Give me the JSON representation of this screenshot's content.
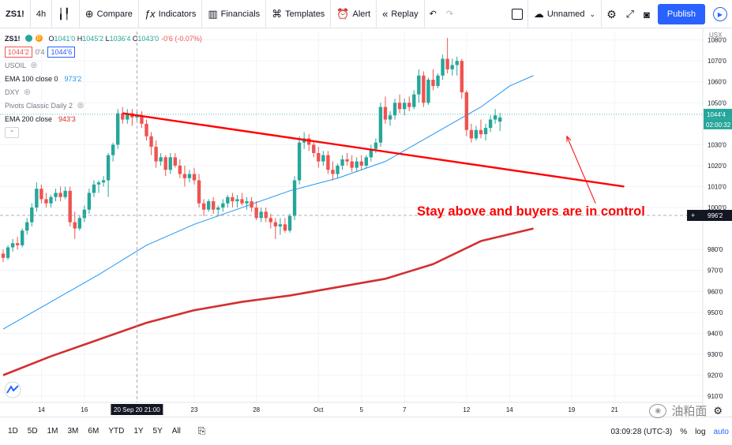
{
  "toolbar": {
    "symbol": "ZS1!",
    "interval": "4h",
    "compare_label": "Compare",
    "indicators_label": "Indicators",
    "financials_label": "Financials",
    "templates_label": "Templates",
    "alert_label": "Alert",
    "replay_label": "Replay",
    "layout_name": "Unnamed",
    "publish_label": "Publish"
  },
  "legend": {
    "symbol": "ZS1!",
    "open_label": "O",
    "open": "1041'0",
    "high_label": "H",
    "high": "1045'2",
    "low_label": "L",
    "low": "1036'4",
    "close_label": "C",
    "close": "1043'0",
    "change": "-0'6 (-0.07%)",
    "bid": "1044'2",
    "spread": "0'4",
    "ask": "1044'6",
    "indicators": [
      {
        "name": "USOIL",
        "value": ""
      },
      {
        "name": "EMA 100 close 0",
        "value": "973'2"
      },
      {
        "name": "DXY",
        "value": ""
      },
      {
        "name": "Pivots Classic Daily 2",
        "value": ""
      },
      {
        "name": "EMA 200 close",
        "value": "943'3"
      }
    ]
  },
  "price_axis": {
    "currency": "USX",
    "last_price": "1044'4",
    "countdown": "02:00:32",
    "crosshair_price": "996'2"
  },
  "time_axis": {
    "crosshair_time": "20 Sep 20   21:00"
  },
  "annotation": {
    "text": "Stay above and buyers are in control"
  },
  "bottombar": {
    "timeframes": [
      "1D",
      "5D",
      "1M",
      "3M",
      "6M",
      "YTD",
      "1Y",
      "5Y",
      "All"
    ],
    "clock": "03:09:28 (UTC-3)",
    "percent_label": "%",
    "log_label": "log",
    "auto_label": "auto"
  },
  "watermark": {
    "text": "油粕面"
  },
  "colors": {
    "up": "#26a69a",
    "down": "#ef5350",
    "ema100": "#2196f3",
    "ema200": "#d32f2f",
    "trendline": "#ff0000",
    "accent": "#2962ff"
  },
  "chart_data": {
    "type": "candlestick",
    "symbol": "ZS1!",
    "interval": "4h",
    "yscale": "linear",
    "y_unit": "cents per bushel",
    "ylim": [
      907,
      1084
    ],
    "y_ticks": [
      {
        "v": 1080,
        "label": "1080'0"
      },
      {
        "v": 1070,
        "label": "1070'0"
      },
      {
        "v": 1060,
        "label": "1060'0"
      },
      {
        "v": 1050,
        "label": "1050'0"
      },
      {
        "v": 1030,
        "label": "1030'0"
      },
      {
        "v": 1020,
        "label": "1020'0"
      },
      {
        "v": 1010,
        "label": "1010'0"
      },
      {
        "v": 1000,
        "label": "1000'0"
      },
      {
        "v": 980,
        "label": "980'0"
      },
      {
        "v": 970,
        "label": "970'0"
      },
      {
        "v": 960,
        "label": "960'0"
      },
      {
        "v": 950,
        "label": "950'0"
      },
      {
        "v": 940,
        "label": "940'0"
      },
      {
        "v": 930,
        "label": "930'0"
      },
      {
        "v": 920,
        "label": "920'0"
      },
      {
        "v": 910,
        "label": "910'0"
      }
    ],
    "x_ticks": [
      {
        "i": 8,
        "label": "14"
      },
      {
        "i": 17,
        "label": "16"
      },
      {
        "i": 40,
        "label": "23"
      },
      {
        "i": 53,
        "label": "28"
      },
      {
        "i": 66,
        "label": "Oct"
      },
      {
        "i": 75,
        "label": "5"
      },
      {
        "i": 84,
        "label": "7"
      },
      {
        "i": 97,
        "label": "12"
      },
      {
        "i": 106,
        "label": "14"
      },
      {
        "i": 119,
        "label": "19"
      },
      {
        "i": 128,
        "label": "21"
      }
    ],
    "grid": true,
    "candles": [
      [
        978,
        980,
        974,
        976
      ],
      [
        976,
        982,
        975,
        981
      ],
      [
        981,
        985,
        979,
        983
      ],
      [
        983,
        986,
        980,
        982
      ],
      [
        982,
        990,
        981,
        989
      ],
      [
        989,
        995,
        987,
        993
      ],
      [
        993,
        1002,
        991,
        1000
      ],
      [
        1000,
        1012,
        998,
        1009
      ],
      [
        1009,
        1011,
        1002,
        1004
      ],
      [
        1004,
        1007,
        1000,
        1002
      ],
      [
        1002,
        1006,
        1000,
        1005
      ],
      [
        1005,
        1009,
        1003,
        1007
      ],
      [
        1007,
        1010,
        1003,
        1005
      ],
      [
        1005,
        1010,
        1004,
        1008
      ],
      [
        1008,
        1010,
        991,
        993
      ],
      [
        993,
        998,
        985,
        990
      ],
      [
        990,
        996,
        989,
        995
      ],
      [
        995,
        1001,
        993,
        999
      ],
      [
        999,
        1009,
        997,
        1007
      ],
      [
        1007,
        1013,
        1005,
        1011
      ],
      [
        1011,
        1013,
        1007,
        1012
      ],
      [
        1012,
        1015,
        1010,
        1013
      ],
      [
        1013,
        1026,
        1005,
        1025
      ],
      [
        1025,
        1031,
        1022,
        1030
      ],
      [
        1030,
        1047,
        1028,
        1045
      ],
      [
        1045,
        1048,
        1040,
        1042
      ],
      [
        1042,
        1047,
        1040,
        1045
      ],
      [
        1045,
        1047,
        1039,
        1043
      ],
      [
        1043,
        1046,
        1041,
        1044
      ],
      [
        1044,
        1046,
        1038,
        1040
      ],
      [
        1040,
        1042,
        1032,
        1034
      ],
      [
        1034,
        1036,
        1025,
        1029
      ],
      [
        1029,
        1032,
        1019,
        1022
      ],
      [
        1022,
        1026,
        1020,
        1024
      ],
      [
        1024,
        1025,
        1015,
        1018
      ],
      [
        1018,
        1026,
        1016,
        1024
      ],
      [
        1024,
        1026,
        1019,
        1020
      ],
      [
        1020,
        1023,
        1014,
        1016
      ],
      [
        1016,
        1020,
        1010,
        1014
      ],
      [
        1014,
        1018,
        1012,
        1016
      ],
      [
        1016,
        1019,
        1011,
        1013
      ],
      [
        1013,
        1016,
        1000,
        1002
      ],
      [
        1002,
        1004,
        996,
        999
      ],
      [
        999,
        1004,
        998,
        1003
      ],
      [
        1003,
        1005,
        997,
        999
      ],
      [
        999,
        1001,
        996,
        1000
      ],
      [
        1000,
        1004,
        998,
        1002
      ],
      [
        1002,
        1006,
        1000,
        1005
      ],
      [
        1005,
        1007,
        1000,
        1003
      ],
      [
        1003,
        1006,
        1000,
        1004
      ],
      [
        1004,
        1007,
        1001,
        1002
      ],
      [
        1002,
        1005,
        999,
        1003
      ],
      [
        1003,
        1005,
        998,
        1000
      ],
      [
        1000,
        1003,
        994,
        995
      ],
      [
        995,
        1000,
        993,
        998
      ],
      [
        998,
        1000,
        993,
        995
      ],
      [
        995,
        997,
        990,
        993
      ],
      [
        993,
        995,
        985,
        991
      ],
      [
        991,
        995,
        987,
        992
      ],
      [
        992,
        995,
        988,
        989
      ],
      [
        989,
        997,
        988,
        996
      ],
      [
        996,
        1015,
        994,
        1013
      ],
      [
        1013,
        1034,
        1011,
        1031
      ],
      [
        1031,
        1036,
        1028,
        1033
      ],
      [
        1033,
        1035,
        1027,
        1030
      ],
      [
        1030,
        1032,
        1024,
        1026
      ],
      [
        1026,
        1029,
        1019,
        1022
      ],
      [
        1022,
        1027,
        1020,
        1025
      ],
      [
        1025,
        1027,
        1016,
        1018
      ],
      [
        1018,
        1022,
        1013,
        1016
      ],
      [
        1016,
        1021,
        1014,
        1020
      ],
      [
        1020,
        1025,
        1018,
        1023
      ],
      [
        1023,
        1026,
        1020,
        1022
      ],
      [
        1022,
        1025,
        1017,
        1019
      ],
      [
        1019,
        1024,
        1017,
        1022
      ],
      [
        1022,
        1025,
        1018,
        1020
      ],
      [
        1020,
        1025,
        1019,
        1024
      ],
      [
        1024,
        1030,
        1022,
        1028
      ],
      [
        1028,
        1033,
        1026,
        1031
      ],
      [
        1031,
        1050,
        1029,
        1048
      ],
      [
        1048,
        1053,
        1040,
        1042
      ],
      [
        1042,
        1046,
        1039,
        1044
      ],
      [
        1044,
        1052,
        1042,
        1050
      ],
      [
        1050,
        1054,
        1045,
        1047
      ],
      [
        1047,
        1052,
        1044,
        1050
      ],
      [
        1050,
        1053,
        1046,
        1048
      ],
      [
        1048,
        1056,
        1047,
        1054
      ],
      [
        1054,
        1066,
        1050,
        1063
      ],
      [
        1063,
        1065,
        1048,
        1050
      ],
      [
        1050,
        1062,
        1049,
        1061
      ],
      [
        1061,
        1066,
        1056,
        1058
      ],
      [
        1058,
        1064,
        1057,
        1063
      ],
      [
        1063,
        1073,
        1061,
        1071
      ],
      [
        1071,
        1081,
        1064,
        1066
      ],
      [
        1066,
        1071,
        1063,
        1068
      ],
      [
        1068,
        1072,
        1063,
        1070
      ],
      [
        1070,
        1071,
        1052,
        1055
      ],
      [
        1055,
        1056,
        1034,
        1037
      ],
      [
        1037,
        1040,
        1031,
        1033
      ],
      [
        1033,
        1039,
        1032,
        1037
      ],
      [
        1037,
        1042,
        1033,
        1035
      ],
      [
        1035,
        1040,
        1032,
        1038
      ],
      [
        1038,
        1044,
        1036,
        1042
      ],
      [
        1042,
        1047,
        1040,
        1044
      ],
      [
        1041,
        1045.25,
        1036.5,
        1043
      ]
    ],
    "series": [
      {
        "name": "EMA 100 close 0",
        "type": "line",
        "values": [
          [
            0,
            942
          ],
          [
            10,
            955
          ],
          [
            20,
            968
          ],
          [
            30,
            982
          ],
          [
            40,
            992
          ],
          [
            50,
            1000
          ],
          [
            60,
            1008
          ],
          [
            70,
            1014
          ],
          [
            80,
            1022
          ],
          [
            90,
            1035
          ],
          [
            100,
            1048
          ],
          [
            106,
            1058
          ],
          [
            111,
            1063
          ]
        ]
      },
      {
        "name": "EMA 200 close",
        "type": "line",
        "values": [
          [
            0,
            920
          ],
          [
            10,
            929
          ],
          [
            20,
            937
          ],
          [
            30,
            945
          ],
          [
            40,
            951
          ],
          [
            50,
            955
          ],
          [
            60,
            958
          ],
          [
            70,
            962
          ],
          [
            80,
            966
          ],
          [
            90,
            973
          ],
          [
            100,
            984
          ],
          [
            111,
            990
          ]
        ]
      }
    ],
    "trendline": {
      "from": [
        25,
        1045
      ],
      "to": [
        130,
        1010
      ]
    },
    "annotation": {
      "text": "Stay above and buyers are in control",
      "color": "#ff0000"
    },
    "arrow": {
      "from": [
        124,
        1002
      ],
      "to": [
        118,
        1034
      ]
    },
    "last_price_line": 1044.5,
    "crosshair": {
      "i": 28,
      "price": 996.25
    }
  }
}
